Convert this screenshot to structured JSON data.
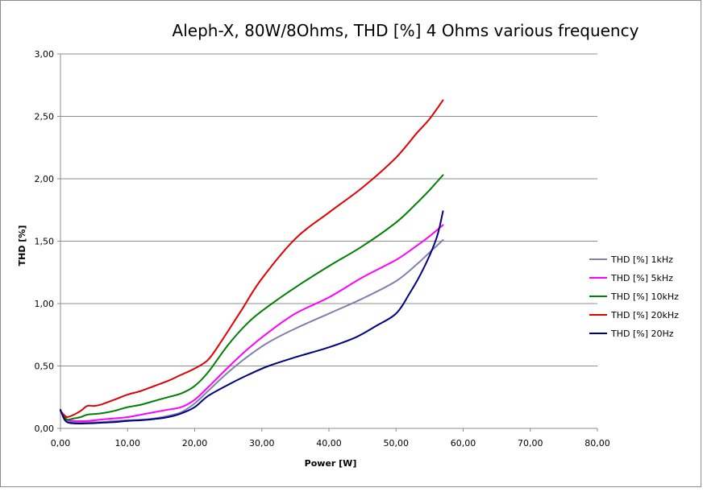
{
  "chart_data": {
    "type": "line",
    "title": "Aleph-X, 80W/8Ohms, THD [%] 4 Ohms various frequency",
    "xlabel": "Power [W]",
    "ylabel": "THD [%]",
    "xlim": [
      0,
      80
    ],
    "ylim": [
      0,
      3
    ],
    "x_ticks": [
      "0,00",
      "10,00",
      "20,00",
      "30,00",
      "40,00",
      "50,00",
      "60,00",
      "70,00",
      "80,00"
    ],
    "y_ticks": [
      "0,00",
      "0,50",
      "1,00",
      "1,50",
      "2,00",
      "2,50",
      "3,00"
    ],
    "grid": "horizontal",
    "legend_position": "right",
    "series": [
      {
        "name": "THD [%] 1kHz",
        "color": "#8080b0",
        "points": [
          [
            0,
            0.14
          ],
          [
            0.5,
            0.09
          ],
          [
            1,
            0.06
          ],
          [
            2,
            0.05
          ],
          [
            4,
            0.05
          ],
          [
            6,
            0.05
          ],
          [
            8,
            0.06
          ],
          [
            10,
            0.065
          ],
          [
            12,
            0.07
          ],
          [
            14,
            0.08
          ],
          [
            16,
            0.1
          ],
          [
            18,
            0.13
          ],
          [
            20,
            0.2
          ],
          [
            22,
            0.3
          ],
          [
            25,
            0.45
          ],
          [
            28,
            0.58
          ],
          [
            31,
            0.69
          ],
          [
            35,
            0.8
          ],
          [
            40,
            0.92
          ],
          [
            45,
            1.04
          ],
          [
            50,
            1.18
          ],
          [
            53,
            1.31
          ],
          [
            55,
            1.41
          ],
          [
            57,
            1.51
          ]
        ]
      },
      {
        "name": "THD [%] 5kHz",
        "color": "#ff00ff",
        "points": [
          [
            0,
            0.14
          ],
          [
            0.5,
            0.1
          ],
          [
            1,
            0.07
          ],
          [
            2,
            0.06
          ],
          [
            4,
            0.06
          ],
          [
            6,
            0.07
          ],
          [
            8,
            0.08
          ],
          [
            10,
            0.09
          ],
          [
            12,
            0.11
          ],
          [
            14,
            0.13
          ],
          [
            16,
            0.15
          ],
          [
            18,
            0.17
          ],
          [
            20,
            0.23
          ],
          [
            22,
            0.33
          ],
          [
            25,
            0.49
          ],
          [
            28,
            0.64
          ],
          [
            31,
            0.77
          ],
          [
            35,
            0.92
          ],
          [
            40,
            1.05
          ],
          [
            45,
            1.21
          ],
          [
            50,
            1.35
          ],
          [
            53,
            1.46
          ],
          [
            55,
            1.54
          ],
          [
            57,
            1.63
          ]
        ]
      },
      {
        "name": "THD [%] 10kHz",
        "color": "#008000",
        "points": [
          [
            0,
            0.14
          ],
          [
            0.5,
            0.1
          ],
          [
            1,
            0.07
          ],
          [
            2,
            0.08
          ],
          [
            3,
            0.09
          ],
          [
            4,
            0.11
          ],
          [
            6,
            0.12
          ],
          [
            8,
            0.14
          ],
          [
            10,
            0.17
          ],
          [
            12,
            0.19
          ],
          [
            14,
            0.22
          ],
          [
            16,
            0.25
          ],
          [
            18,
            0.28
          ],
          [
            20,
            0.34
          ],
          [
            22,
            0.45
          ],
          [
            25,
            0.67
          ],
          [
            28,
            0.85
          ],
          [
            31,
            0.98
          ],
          [
            35,
            1.13
          ],
          [
            40,
            1.3
          ],
          [
            45,
            1.46
          ],
          [
            50,
            1.65
          ],
          [
            53,
            1.8
          ],
          [
            55,
            1.91
          ],
          [
            57,
            2.03
          ]
        ]
      },
      {
        "name": "THD [%] 20kHz",
        "color": "#e00000",
        "points": [
          [
            0,
            0.14
          ],
          [
            0.5,
            0.11
          ],
          [
            1,
            0.09
          ],
          [
            2,
            0.11
          ],
          [
            3,
            0.14
          ],
          [
            4,
            0.18
          ],
          [
            5,
            0.18
          ],
          [
            6,
            0.19
          ],
          [
            8,
            0.23
          ],
          [
            10,
            0.27
          ],
          [
            12,
            0.3
          ],
          [
            14,
            0.34
          ],
          [
            16,
            0.38
          ],
          [
            18,
            0.43
          ],
          [
            20,
            0.48
          ],
          [
            22,
            0.55
          ],
          [
            24,
            0.7
          ],
          [
            27,
            0.95
          ],
          [
            30,
            1.2
          ],
          [
            35,
            1.52
          ],
          [
            40,
            1.73
          ],
          [
            45,
            1.93
          ],
          [
            50,
            2.17
          ],
          [
            53,
            2.36
          ],
          [
            55,
            2.48
          ],
          [
            57,
            2.63
          ]
        ]
      },
      {
        "name": "THD [%] 20Hz",
        "color": "#000080",
        "points": [
          [
            0,
            0.15
          ],
          [
            0.5,
            0.08
          ],
          [
            1,
            0.05
          ],
          [
            2,
            0.04
          ],
          [
            4,
            0.04
          ],
          [
            6,
            0.045
          ],
          [
            8,
            0.05
          ],
          [
            10,
            0.06
          ],
          [
            12,
            0.065
          ],
          [
            14,
            0.075
          ],
          [
            16,
            0.09
          ],
          [
            18,
            0.12
          ],
          [
            20,
            0.17
          ],
          [
            22,
            0.26
          ],
          [
            25,
            0.35
          ],
          [
            28,
            0.43
          ],
          [
            31,
            0.5
          ],
          [
            35,
            0.57
          ],
          [
            40,
            0.65
          ],
          [
            44,
            0.73
          ],
          [
            47,
            0.82
          ],
          [
            50,
            0.92
          ],
          [
            52,
            1.08
          ],
          [
            54,
            1.27
          ],
          [
            56,
            1.52
          ],
          [
            57,
            1.74
          ]
        ]
      }
    ]
  }
}
